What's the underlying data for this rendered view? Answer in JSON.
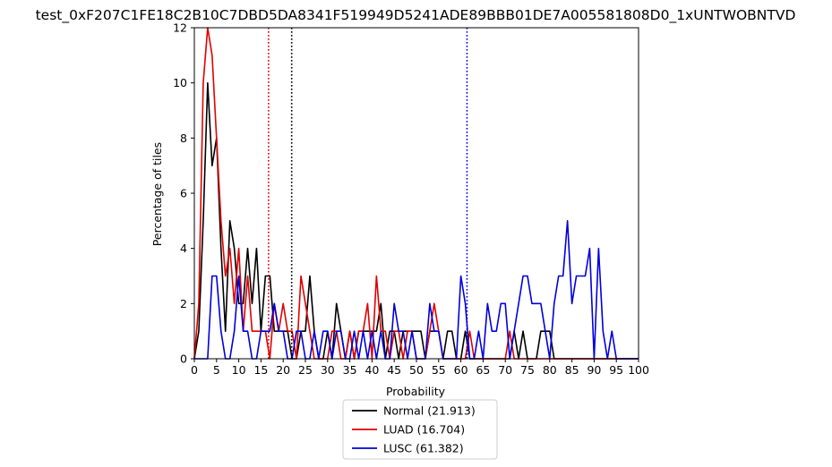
{
  "chart_data": {
    "type": "line",
    "title": "test_0xF207C1FE18C2B10C7DBD5DA8341F519949D5241ADE89BBB01DE7A005581808D0_1xUNTWOBNTVD",
    "xlabel": "Probability",
    "ylabel": "Percentage of tiles",
    "xlim": [
      0,
      100
    ],
    "ylim": [
      0,
      12
    ],
    "xticks": [
      0,
      5,
      10,
      15,
      20,
      25,
      30,
      35,
      40,
      45,
      50,
      55,
      60,
      65,
      70,
      75,
      80,
      85,
      90,
      95,
      100
    ],
    "yticks": [
      0,
      2,
      4,
      6,
      8,
      10,
      12
    ],
    "grid": false,
    "legend_position": "bottom-center",
    "series": [
      {
        "name": "Normal (21.913)",
        "color": "#000000",
        "threshold": 21.913,
        "values": [
          0,
          1,
          5,
          10,
          7,
          8,
          4,
          1,
          5,
          4,
          2,
          2,
          4,
          2,
          4,
          1,
          3,
          3,
          1,
          1,
          1,
          1,
          0,
          0,
          1,
          1,
          3,
          1,
          0,
          0,
          1,
          0,
          2,
          1,
          0,
          1,
          0,
          1,
          1,
          1,
          1,
          1,
          2,
          0,
          1,
          1,
          0,
          1,
          1,
          1,
          1,
          1,
          0,
          1,
          1,
          1,
          0,
          1,
          1,
          0,
          0,
          1,
          0,
          0,
          0,
          0,
          0,
          0,
          0,
          0,
          0,
          0,
          1,
          0,
          1,
          0,
          0,
          0,
          1,
          1,
          1,
          0,
          0,
          0,
          0,
          0,
          0,
          0,
          0,
          0,
          0,
          0,
          0,
          0,
          0,
          0,
          0,
          0,
          0,
          0,
          0
        ]
      },
      {
        "name": "LUAD (16.704)",
        "color": "#e00000",
        "threshold": 16.704,
        "values": [
          0,
          2,
          10,
          12,
          11,
          8,
          5,
          3,
          4,
          2,
          4,
          1,
          3,
          1,
          1,
          1,
          1,
          0,
          2,
          1,
          2,
          1,
          1,
          0,
          3,
          2,
          1,
          0,
          0,
          0,
          0,
          1,
          1,
          0,
          0,
          1,
          0,
          1,
          1,
          2,
          0,
          3,
          1,
          1,
          0,
          1,
          1,
          0,
          1,
          1,
          0,
          0,
          0,
          1,
          2,
          1,
          0,
          0,
          0,
          0,
          0,
          0,
          1,
          0,
          0,
          0,
          0,
          0,
          0,
          0,
          0,
          1,
          0,
          0,
          0,
          0,
          0,
          0,
          0,
          0,
          0,
          0,
          0,
          0,
          0,
          0,
          0,
          0,
          0,
          0,
          0,
          0,
          0,
          0,
          0,
          0,
          0,
          0,
          0,
          0,
          0
        ]
      },
      {
        "name": "LUSC (61.382)",
        "color": "#0000dd",
        "threshold": 61.382,
        "values": [
          0,
          0,
          0,
          0,
          3,
          3,
          1,
          0,
          0,
          1,
          3,
          1,
          1,
          0,
          0,
          1,
          1,
          1,
          2,
          1,
          1,
          0,
          0,
          1,
          1,
          0,
          0,
          1,
          0,
          1,
          1,
          0,
          1,
          1,
          0,
          0,
          1,
          0,
          1,
          0,
          1,
          0,
          1,
          0,
          0,
          2,
          1,
          1,
          0,
          1,
          0,
          0,
          0,
          2,
          1,
          1,
          0,
          0,
          0,
          0,
          3,
          2,
          0,
          0,
          1,
          0,
          2,
          1,
          1,
          2,
          2,
          0,
          1,
          2,
          3,
          3,
          2,
          2,
          2,
          1,
          0,
          2,
          3,
          3,
          5,
          2,
          3,
          3,
          3,
          4,
          0,
          4,
          1,
          0,
          1,
          0,
          0,
          0,
          0,
          0,
          0
        ]
      }
    ]
  }
}
